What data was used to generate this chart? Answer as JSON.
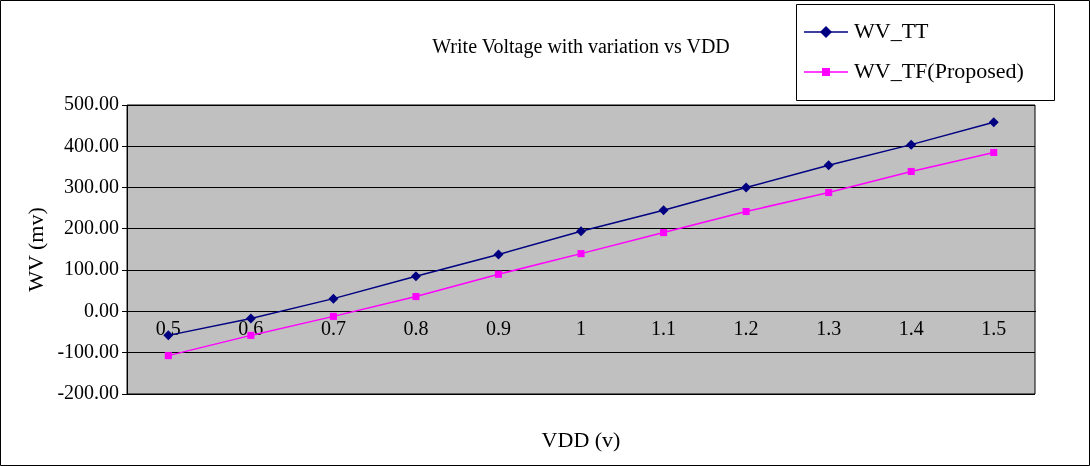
{
  "chart_data": {
    "type": "line",
    "title": "Write Voltage with variation vs VDD",
    "xlabel": "VDD (v)",
    "ylabel": "WV (mv)",
    "categories": [
      "0.5",
      "0.6",
      "0.7",
      "0.8",
      "0.9",
      "1",
      "1.1",
      "1.2",
      "1.3",
      "1.4",
      "1.5"
    ],
    "series": [
      {
        "name": "WV_TT",
        "color": "#000080",
        "marker": "diamond",
        "values": [
          -58,
          -17,
          31,
          85,
          138,
          194,
          245,
          300,
          354,
          404,
          458
        ]
      },
      {
        "name": "WV_TF(Proposed)",
        "color": "#ff00ff",
        "marker": "square",
        "values": [
          -107,
          -58,
          -12,
          36,
          90,
          140,
          191,
          242,
          288,
          339,
          385
        ]
      }
    ],
    "ylim": [
      -200,
      500
    ],
    "yticks": [
      {
        "value": -200,
        "label": "-200.00"
      },
      {
        "value": -100,
        "label": "-100.00"
      },
      {
        "value": 0,
        "label": "0.00"
      },
      {
        "value": 100,
        "label": "100.00"
      },
      {
        "value": 200,
        "label": "200.00"
      },
      {
        "value": 300,
        "label": "300.00"
      },
      {
        "value": 400,
        "label": "400.00"
      },
      {
        "value": 500,
        "label": "500.00"
      }
    ],
    "grid": "y",
    "legend": "top right",
    "line_style": "solid"
  }
}
